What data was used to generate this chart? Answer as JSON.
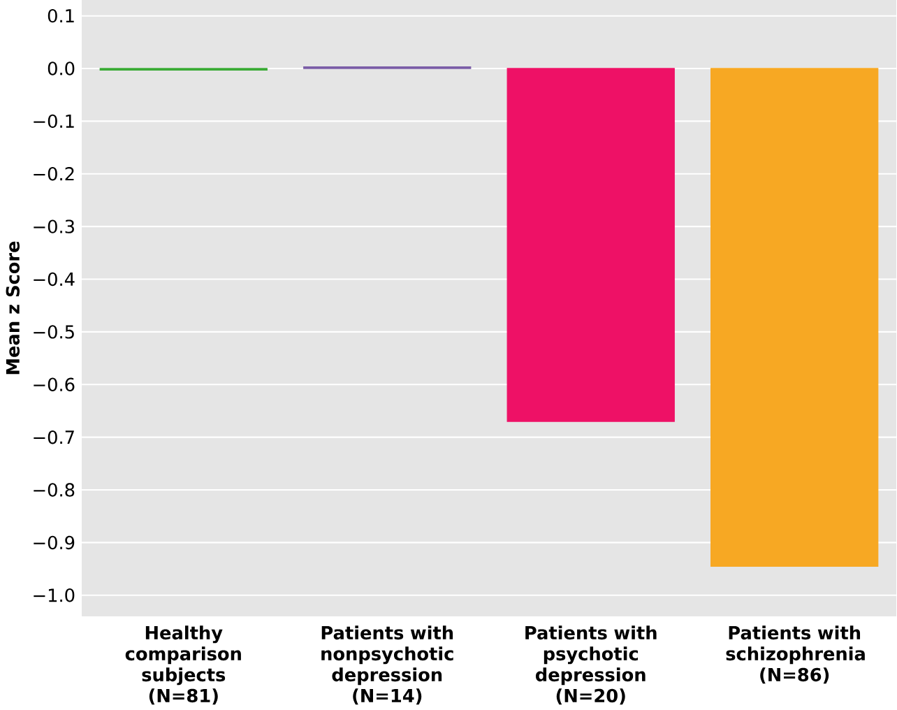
{
  "chart_data": {
    "type": "bar",
    "ylabel": "Mean z Score",
    "categories": [
      "Healthy comparison subjects (N=81)",
      "Patients with nonpsychotic depression (N=14)",
      "Patients with psychotic depression (N=20)",
      "Patients with schizophrenia (N=86)"
    ],
    "values": [
      -0.003,
      0.003,
      -0.67,
      -0.945
    ],
    "colors": [
      "#3aaa35",
      "#7b5ea7",
      "#ee1166",
      "#f7a823"
    ],
    "ylim": [
      -1.04,
      0.13
    ],
    "yticks": [
      {
        "value": 0.1,
        "label": "0.1"
      },
      {
        "value": 0,
        "label": "0.0"
      },
      {
        "value": -0.1,
        "label": "−0.1"
      },
      {
        "value": -0.2,
        "label": "−0.2"
      },
      {
        "value": -0.3,
        "label": "−0.3"
      },
      {
        "value": -0.4,
        "label": "−0.4"
      },
      {
        "value": -0.5,
        "label": "−0.5"
      },
      {
        "value": -0.6,
        "label": "−0.6"
      },
      {
        "value": -0.7,
        "label": "−0.7"
      },
      {
        "value": -0.8,
        "label": "−0.8"
      },
      {
        "value": -0.9,
        "label": "−0.9"
      },
      {
        "value": -1,
        "label": "−1.0"
      }
    ],
    "grid": "y"
  }
}
